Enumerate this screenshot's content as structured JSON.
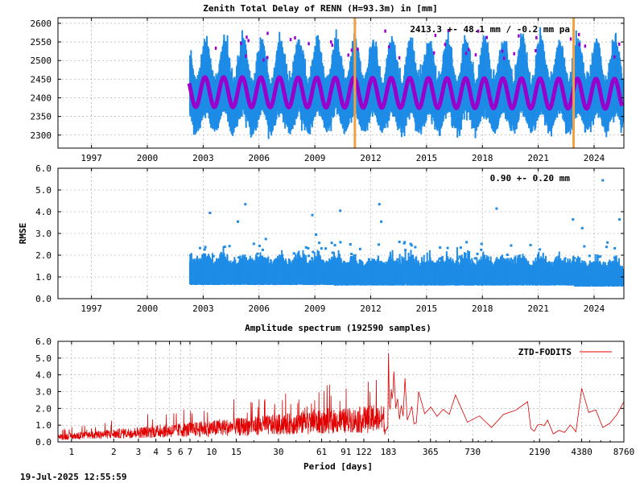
{
  "footer": {
    "timestamp": "19-Jul-2025 12:55:59"
  },
  "chart_data": [
    {
      "type": "scatter",
      "title": "Zenith Total Delay of RENN (H=93.3m) in [mm]",
      "annotation": "2413.3 +-  48.1 mm / -0.2 mm pa",
      "xlim": [
        1995.2,
        2025.6
      ],
      "ylim": [
        2265,
        2615
      ],
      "x_ticks": [
        1997,
        2000,
        2003,
        2006,
        2009,
        2012,
        2015,
        2018,
        2021,
        2024
      ],
      "x_tick_labels": [
        "1997",
        "2000",
        "2003",
        "2006",
        "2009",
        "2012",
        "2015",
        "2018",
        "2021",
        "2024"
      ],
      "y_ticks": [
        2300,
        2350,
        2400,
        2450,
        2500,
        2550,
        2600
      ],
      "y_tick_labels": [
        "2300",
        "2350",
        "2400",
        "2450",
        "2500",
        "2550",
        "2600"
      ],
      "data_start": 2002.25,
      "data_end": 2025.5,
      "mean": 2413.3,
      "std": 48.1,
      "trend_mm_per_year": -0.2,
      "seasonal_amplitude": 40,
      "equipment_changes": [
        2011.15,
        2022.9
      ],
      "colors": {
        "observations": "#1e8ce6",
        "model": "#9900cc",
        "events": "#f0a040"
      }
    },
    {
      "type": "scatter",
      "ylabel": "RMSE",
      "annotation": "0.90 +-  0.20 mm",
      "xlim": [
        1995.2,
        2025.6
      ],
      "ylim": [
        0,
        6
      ],
      "x_ticks": [
        1997,
        2000,
        2003,
        2006,
        2009,
        2012,
        2015,
        2018,
        2021,
        2024
      ],
      "x_tick_labels": [
        "1997",
        "2000",
        "2003",
        "2006",
        "2009",
        "2012",
        "2015",
        "2018",
        "2021",
        "2024"
      ],
      "y_ticks": [
        0,
        1,
        2,
        3,
        4,
        5,
        6
      ],
      "y_tick_labels": [
        "0.0",
        "1.0",
        "2.0",
        "3.0",
        "4.0",
        "5.0",
        "6.0"
      ],
      "data_start": 2002.25,
      "data_end": 2025.5,
      "mean": 0.9,
      "std": 0.2,
      "outliers": [
        {
          "x": 2003.3,
          "y": 4.0
        },
        {
          "x": 2005.2,
          "y": 4.4
        },
        {
          "x": 2004.8,
          "y": 3.6
        },
        {
          "x": 2008.8,
          "y": 3.9
        },
        {
          "x": 2010.3,
          "y": 4.1
        },
        {
          "x": 2012.4,
          "y": 4.4
        },
        {
          "x": 2012.5,
          "y": 3.6
        },
        {
          "x": 2018.7,
          "y": 4.2
        },
        {
          "x": 2022.8,
          "y": 3.7
        },
        {
          "x": 2024.4,
          "y": 5.5
        },
        {
          "x": 2025.3,
          "y": 3.7
        },
        {
          "x": 2023.3,
          "y": 3.3
        },
        {
          "x": 2009.0,
          "y": 3.0
        },
        {
          "x": 2006.3,
          "y": 2.8
        }
      ],
      "colors": {
        "observations": "#1e8ce6"
      }
    },
    {
      "type": "line",
      "title": "Amplitude spectrum (192590 samples)",
      "xlabel": "Period [days]",
      "x_scale": "log",
      "xlim": [
        0.8,
        8760
      ],
      "ylim": [
        0,
        6
      ],
      "x_ticks": [
        1,
        2,
        3,
        4,
        5,
        6,
        7,
        10,
        15,
        30,
        61,
        91,
        122,
        183,
        365,
        730,
        2190,
        4380,
        8760
      ],
      "x_tick_labels": [
        "1",
        "2",
        "3",
        "4",
        "5",
        "6",
        "7",
        "10",
        "15",
        "30",
        "61",
        "91",
        "122",
        "183",
        "365",
        "730",
        "2190",
        "4380",
        "8760"
      ],
      "y_ticks": [
        0,
        1,
        2,
        3,
        4,
        5,
        6
      ],
      "y_tick_labels": [
        "0.0",
        "1.0",
        "2.0",
        "3.0",
        "4.0",
        "5.0",
        "6.0"
      ],
      "legend": "top-right",
      "series": [
        {
          "name": "ZTD-FODITS",
          "color": "#e00000",
          "peaks": [
            {
              "x": 183,
              "y": 5.3
            },
            {
              "x": 200,
              "y": 4.2
            },
            {
              "x": 240,
              "y": 3.8
            },
            {
              "x": 300,
              "y": 3.0
            },
            {
              "x": 550,
              "y": 2.8
            },
            {
              "x": 1800,
              "y": 2.4
            },
            {
              "x": 2500,
              "y": 1.3
            },
            {
              "x": 4380,
              "y": 3.2
            },
            {
              "x": 8760,
              "y": 2.4
            }
          ]
        }
      ]
    }
  ]
}
